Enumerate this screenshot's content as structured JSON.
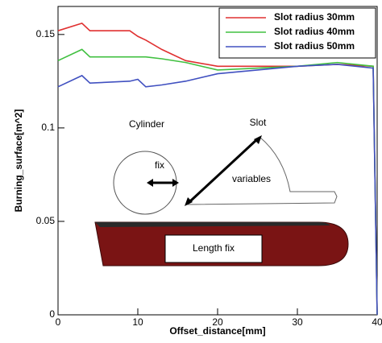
{
  "chart_data": {
    "type": "line",
    "x_label": "Offset_distance[mm]",
    "y_label": "Burning_surface[m^2]",
    "x": [
      0,
      3,
      4,
      9,
      10,
      11,
      13,
      16,
      20,
      30,
      35,
      39.5,
      40
    ],
    "series": [
      {
        "name": "Slot radius 30mm",
        "color": "#e03030",
        "values": [
          0.152,
          0.156,
          0.152,
          0.152,
          0.149,
          0.147,
          0.142,
          0.136,
          0.133,
          0.133,
          0.134,
          0.133,
          0
        ]
      },
      {
        "name": "Slot radius 40mm",
        "color": "#40c040",
        "values": [
          0.136,
          0.142,
          0.138,
          0.138,
          0.138,
          0.138,
          0.137,
          0.135,
          0.131,
          0.133,
          0.135,
          0.133,
          0
        ]
      },
      {
        "name": "Slot radius 50mm",
        "color": "#4050c0",
        "values": [
          0.122,
          0.128,
          0.124,
          0.125,
          0.126,
          0.122,
          0.123,
          0.125,
          0.129,
          0.133,
          0.134,
          0.132,
          0
        ]
      }
    ],
    "xlim": [
      0,
      40
    ],
    "xticks": [
      0,
      10,
      20,
      30,
      40
    ],
    "ylim": [
      0,
      0.165
    ],
    "yticks": [
      0,
      0.05,
      0.1,
      0.15
    ],
    "legend": "top-right",
    "annotations": [
      "Cylinder",
      "fix",
      "Slot",
      "variables",
      "Length fix"
    ]
  }
}
